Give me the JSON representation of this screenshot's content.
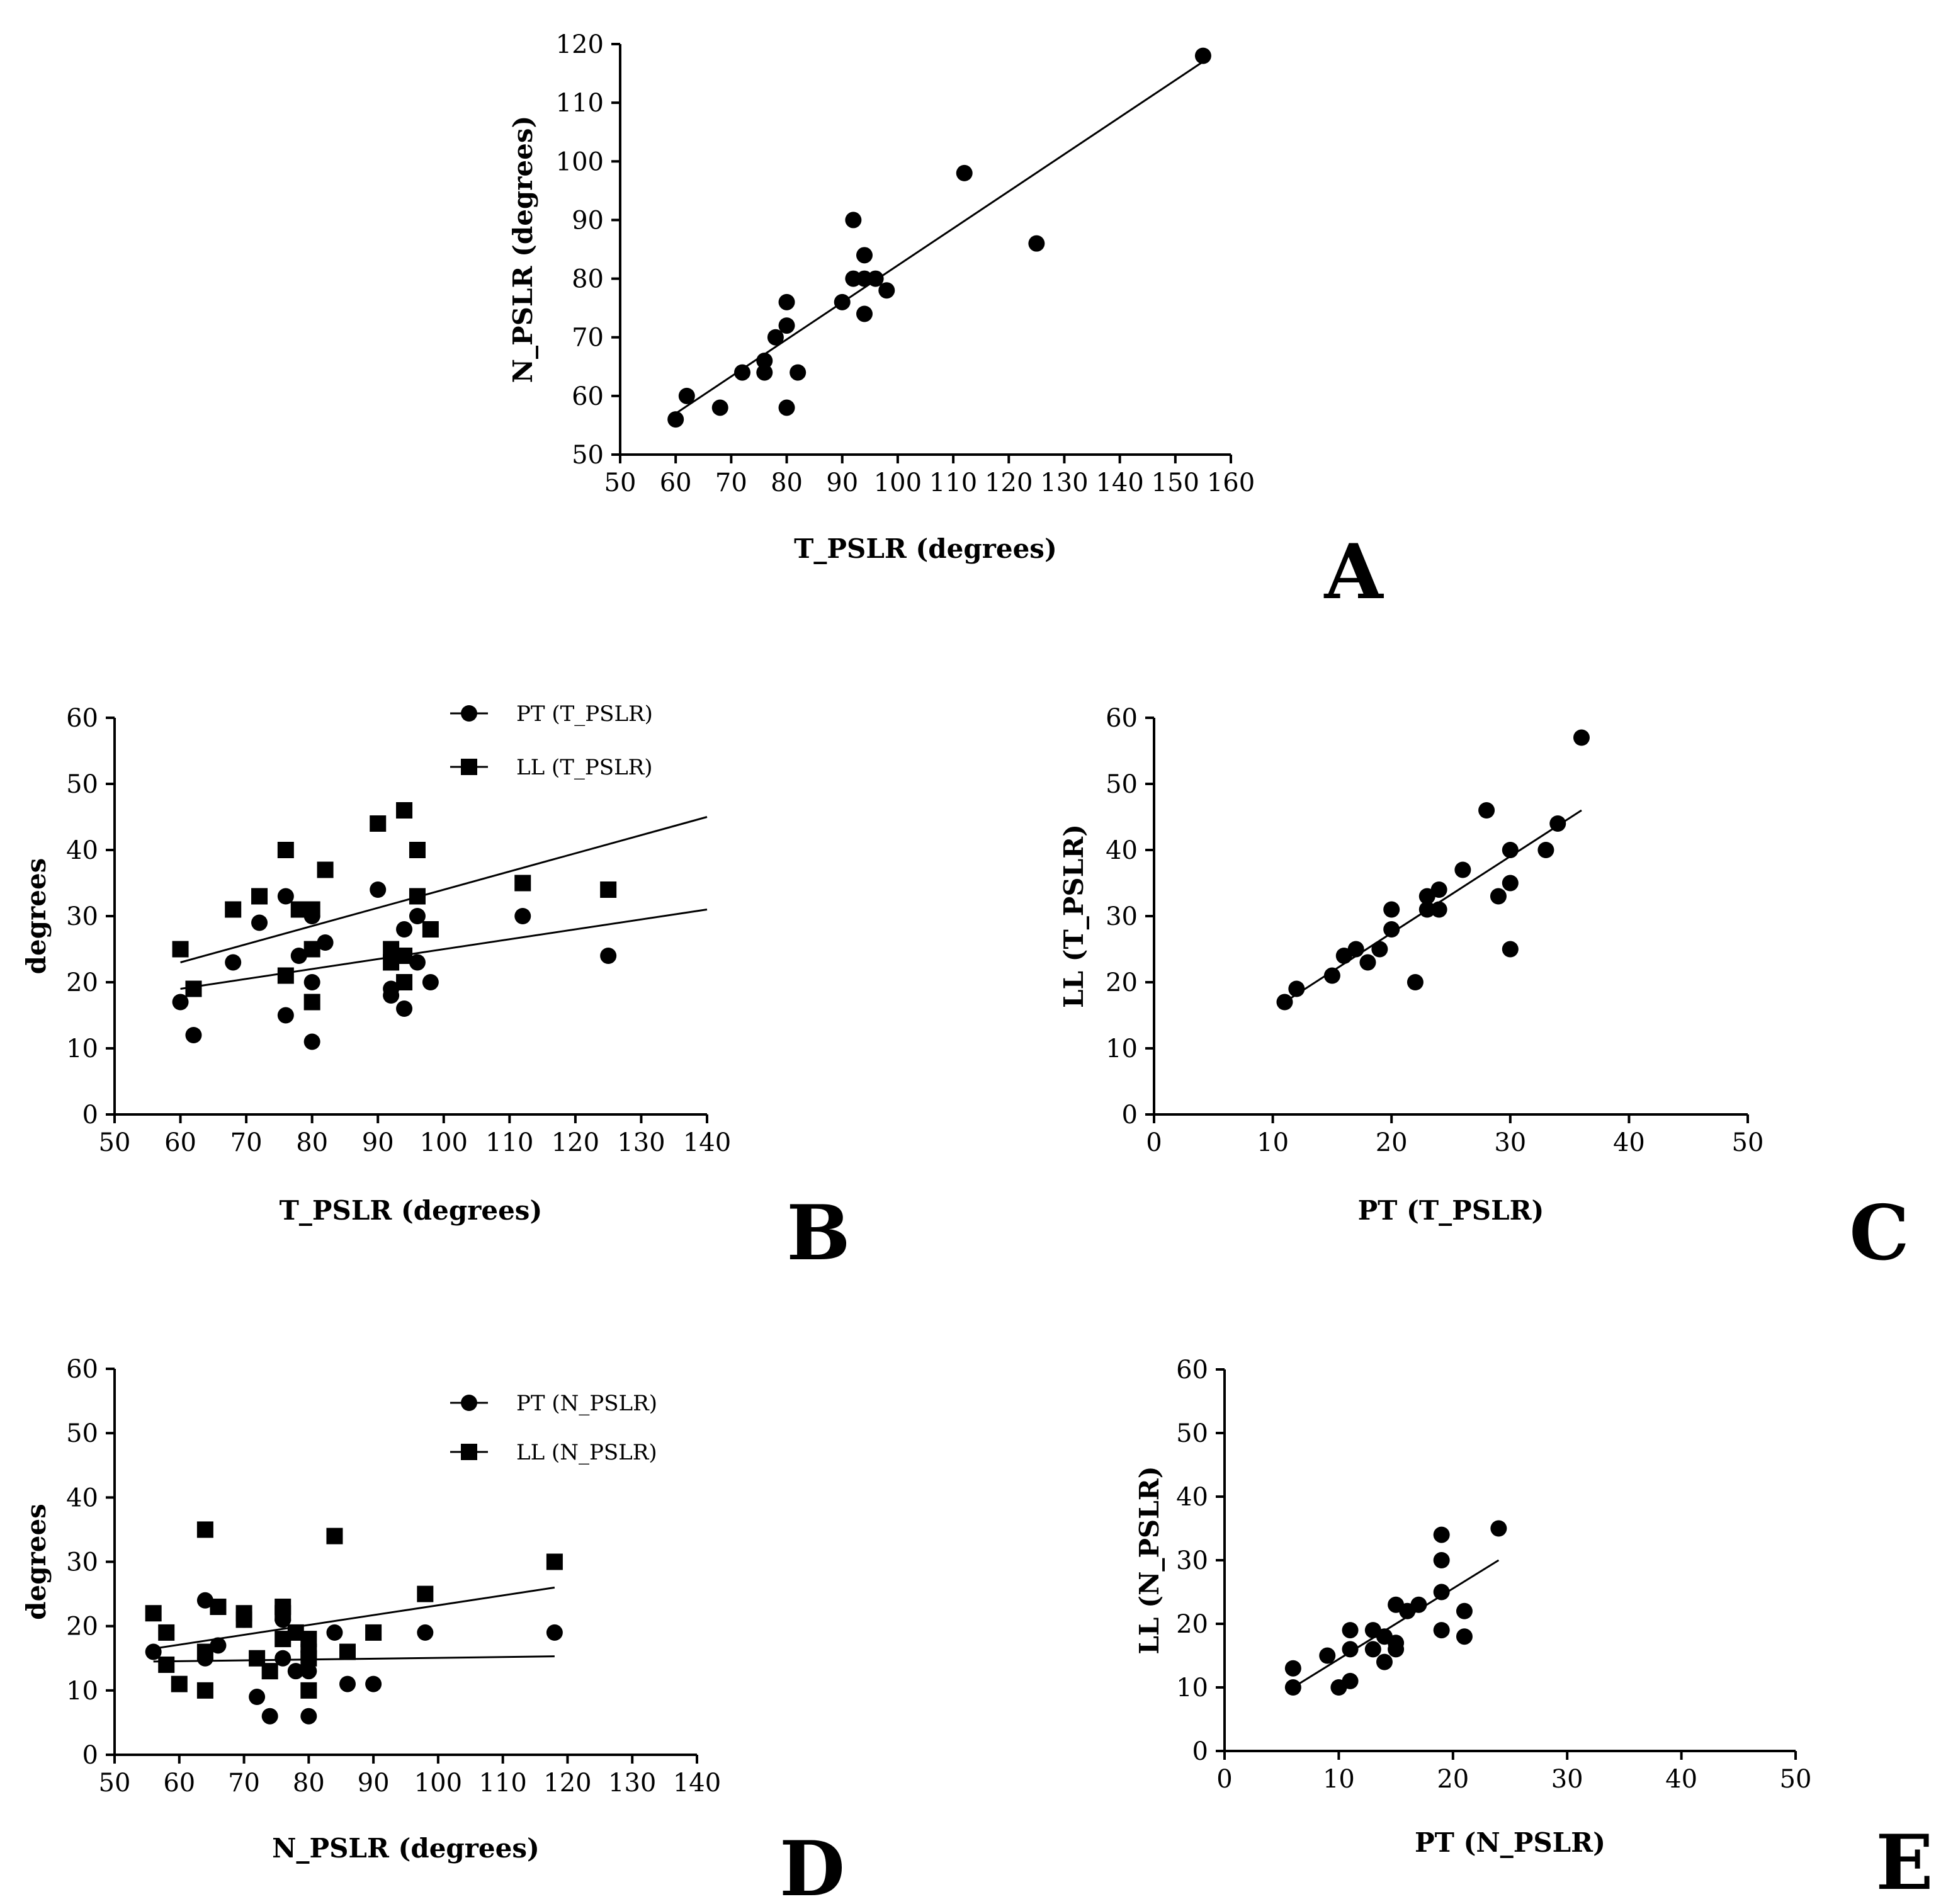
{
  "chart_data": [
    {
      "id": "A",
      "type": "scatter",
      "panel_label": "A",
      "xlabel": "T_PSLR (degrees)",
      "ylabel": "N_PSLR (degrees)",
      "xlim": [
        50,
        160
      ],
      "ylim": [
        50,
        120
      ],
      "xticks": [
        "50",
        "60",
        "70",
        "80",
        "90",
        "100",
        "110",
        "120",
        "130",
        "140",
        "150",
        "160"
      ],
      "yticks": [
        "50",
        "60",
        "70",
        "80",
        "90",
        "100",
        "110",
        "120"
      ],
      "series": [
        {
          "name": "",
          "marker": "circle",
          "x": [
            60,
            62,
            68,
            72,
            76,
            76,
            78,
            80,
            80,
            80,
            82,
            90,
            92,
            92,
            94,
            94,
            94,
            96,
            98,
            112,
            125,
            155
          ],
          "y": [
            56,
            60,
            58,
            64,
            66,
            64,
            70,
            76,
            72,
            58,
            64,
            76,
            90,
            80,
            84,
            80,
            74,
            80,
            78,
            98,
            86,
            118
          ],
          "fit": [
            [
              60,
              57
            ],
            [
              155,
              117
            ]
          ]
        }
      ]
    },
    {
      "id": "B",
      "type": "scatter",
      "panel_label": "B",
      "xlabel": "T_PSLR (degrees)",
      "ylabel": "degrees",
      "xlim": [
        50,
        140
      ],
      "ylim": [
        0,
        60
      ],
      "xticks": [
        "50",
        "60",
        "70",
        "80",
        "90",
        "100",
        "110",
        "120",
        "130",
        "140"
      ],
      "yticks": [
        "0",
        "10",
        "20",
        "30",
        "40",
        "50",
        "60"
      ],
      "legend": [
        "PT (T_PSLR)",
        "LL (T_PSLR)"
      ],
      "series": [
        {
          "name": "PT (T_PSLR)",
          "marker": "circle",
          "x": [
            60,
            62,
            68,
            72,
            76,
            76,
            78,
            80,
            80,
            80,
            82,
            90,
            92,
            92,
            94,
            94,
            94,
            96,
            96,
            98,
            112,
            125
          ],
          "y": [
            17,
            12,
            23,
            29,
            33,
            15,
            24,
            30,
            20,
            11,
            26,
            34,
            19,
            18,
            28,
            24,
            16,
            30,
            23,
            20,
            30,
            24
          ],
          "fit": [
            [
              60,
              19
            ],
            [
              140,
              31
            ]
          ]
        },
        {
          "name": "LL (T_PSLR)",
          "marker": "square",
          "x": [
            60,
            62,
            68,
            72,
            76,
            76,
            78,
            80,
            80,
            80,
            82,
            90,
            92,
            92,
            94,
            94,
            94,
            96,
            96,
            98,
            112,
            125
          ],
          "y": [
            25,
            19,
            31,
            33,
            40,
            21,
            31,
            31,
            25,
            17,
            37,
            44,
            25,
            23,
            46,
            24,
            20,
            40,
            33,
            28,
            35,
            34
          ],
          "fit": [
            [
              60,
              23
            ],
            [
              140,
              45
            ]
          ]
        }
      ]
    },
    {
      "id": "C",
      "type": "scatter",
      "panel_label": "C",
      "xlabel": "PT (T_PSLR)",
      "ylabel": "LL (T_PSLR)",
      "xlim": [
        0,
        50
      ],
      "ylim": [
        0,
        60
      ],
      "xticks": [
        "0",
        "10",
        "20",
        "30",
        "40",
        "50"
      ],
      "yticks": [
        "0",
        "10",
        "20",
        "30",
        "40",
        "50",
        "60"
      ],
      "series": [
        {
          "name": "",
          "marker": "circle",
          "x": [
            11,
            12,
            15,
            16,
            17,
            18,
            19,
            20,
            20,
            22,
            23,
            23,
            24,
            24,
            26,
            28,
            29,
            30,
            30,
            30,
            33,
            34,
            36
          ],
          "y": [
            17,
            19,
            21,
            24,
            25,
            23,
            25,
            31,
            28,
            20,
            33,
            31,
            34,
            31,
            37,
            46,
            33,
            40,
            35,
            25,
            40,
            44,
            57
          ],
          "fit": [
            [
              11,
              17
            ],
            [
              36,
              46
            ]
          ]
        }
      ]
    },
    {
      "id": "D",
      "type": "scatter",
      "panel_label": "D",
      "xlabel": "N_PSLR (degrees)",
      "ylabel": "degrees",
      "xlim": [
        50,
        140
      ],
      "ylim": [
        0,
        60
      ],
      "xticks": [
        "50",
        "60",
        "70",
        "80",
        "90",
        "100",
        "110",
        "120",
        "130",
        "140"
      ],
      "yticks": [
        "0",
        "10",
        "20",
        "30",
        "40",
        "50",
        "60"
      ],
      "legend": [
        "PT (N_PSLR)",
        "LL (N_PSLR)"
      ],
      "series": [
        {
          "name": "PT (N_PSLR)",
          "marker": "circle",
          "x": [
            56,
            64,
            64,
            66,
            70,
            72,
            74,
            76,
            76,
            78,
            80,
            80,
            80,
            84,
            86,
            90,
            98,
            118
          ],
          "y": [
            16,
            24,
            15,
            17,
            21,
            9,
            6,
            21,
            15,
            13,
            13,
            6,
            16,
            19,
            11,
            11,
            19,
            19
          ],
          "fit": [
            [
              56,
              14.5
            ],
            [
              118,
              15.3
            ]
          ]
        },
        {
          "name": "LL (N_PSLR)",
          "marker": "square",
          "x": [
            56,
            58,
            58,
            60,
            64,
            64,
            64,
            66,
            70,
            70,
            72,
            74,
            76,
            76,
            76,
            78,
            80,
            80,
            80,
            80,
            84,
            86,
            90,
            98,
            118
          ],
          "y": [
            22,
            19,
            14,
            11,
            35,
            16,
            10,
            23,
            22,
            21,
            15,
            13,
            23,
            22,
            18,
            19,
            18,
            16,
            15,
            10,
            34,
            16,
            19,
            25,
            30
          ],
          "fit": [
            [
              56,
              16.5
            ],
            [
              118,
              26
            ]
          ]
        }
      ]
    },
    {
      "id": "E",
      "type": "scatter",
      "panel_label": "E",
      "xlabel": "PT (N_PSLR)",
      "ylabel": "LL (N_PSLR)",
      "xlim": [
        0,
        50
      ],
      "ylim": [
        0,
        60
      ],
      "xticks": [
        "0",
        "10",
        "20",
        "30",
        "40",
        "50"
      ],
      "yticks": [
        "0",
        "10",
        "20",
        "30",
        "40",
        "50",
        "60"
      ],
      "series": [
        {
          "name": "",
          "marker": "circle",
          "x": [
            6,
            6,
            9,
            10,
            11,
            11,
            11,
            13,
            13,
            14,
            14,
            15,
            15,
            15,
            16,
            17,
            19,
            19,
            19,
            19,
            21,
            21,
            24
          ],
          "y": [
            13,
            10,
            15,
            10,
            19,
            16,
            11,
            19,
            16,
            18,
            14,
            23,
            17,
            16,
            22,
            23,
            34,
            30,
            25,
            19,
            22,
            18,
            35
          ],
          "fit": [
            [
              6,
              10
            ],
            [
              24,
              30
            ]
          ]
        }
      ]
    }
  ]
}
